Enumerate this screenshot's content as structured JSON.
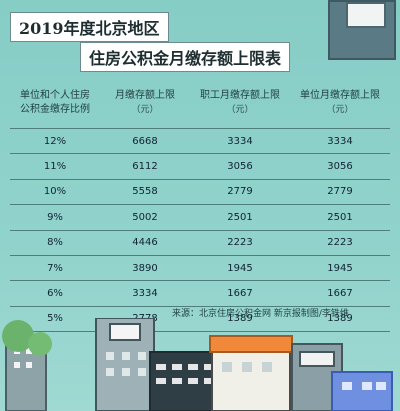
{
  "title": {
    "line1": "2019年度北京地区",
    "line2": "住房公积金月缴存额上限表"
  },
  "table": {
    "headers": [
      {
        "text": "单位和个人住房\n公积金缴存比例",
        "unit": ""
      },
      {
        "text": "月缴存额上限",
        "unit": "（元）"
      },
      {
        "text": "职工月缴存额上限",
        "unit": "（元）"
      },
      {
        "text": "单位月缴存额上限",
        "unit": "（元）"
      }
    ],
    "rows": [
      [
        "12%",
        "6668",
        "3334",
        "3334"
      ],
      [
        "11%",
        "6112",
        "3056",
        "3056"
      ],
      [
        "10%",
        "5558",
        "2779",
        "2779"
      ],
      [
        "9%",
        "5002",
        "2501",
        "2501"
      ],
      [
        "8%",
        "4446",
        "2223",
        "2223"
      ],
      [
        "7%",
        "3890",
        "1945",
        "1945"
      ],
      [
        "6%",
        "3334",
        "1667",
        "1667"
      ],
      [
        "5%",
        "2778",
        "1389",
        "1389"
      ]
    ]
  },
  "source": "来源：北京住房公积金网    新京报制图/李铁维"
}
